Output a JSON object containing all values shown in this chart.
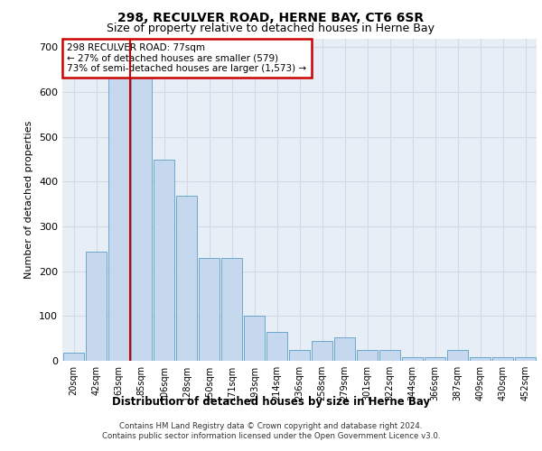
{
  "title": "298, RECULVER ROAD, HERNE BAY, CT6 6SR",
  "subtitle": "Size of property relative to detached houses in Herne Bay",
  "xlabel_bottom": "Distribution of detached houses by size in Herne Bay",
  "ylabel": "Number of detached properties",
  "categories": [
    "20sqm",
    "42sqm",
    "63sqm",
    "85sqm",
    "106sqm",
    "128sqm",
    "150sqm",
    "171sqm",
    "193sqm",
    "214sqm",
    "236sqm",
    "258sqm",
    "279sqm",
    "301sqm",
    "322sqm",
    "344sqm",
    "366sqm",
    "387sqm",
    "409sqm",
    "430sqm",
    "452sqm"
  ],
  "values": [
    18,
    243,
    645,
    645,
    450,
    368,
    230,
    230,
    100,
    65,
    25,
    45,
    52,
    25,
    25,
    8,
    8,
    25,
    8,
    8,
    8
  ],
  "bar_color": "#c5d8ed",
  "bar_edge_color": "#5a9dc5",
  "grid_color": "#d0dae8",
  "background_color": "#e8eef5",
  "annotation_text": "298 RECULVER ROAD: 77sqm\n← 27% of detached houses are smaller (579)\n73% of semi-detached houses are larger (1,573) →",
  "annotation_box_color": "#ffffff",
  "annotation_box_edge": "#cc0000",
  "vline_x_index": 2,
  "vline_color": "#cc0000",
  "ylim": [
    0,
    720
  ],
  "yticks": [
    0,
    100,
    200,
    300,
    400,
    500,
    600,
    700
  ],
  "footer": "Contains HM Land Registry data © Crown copyright and database right 2024.\nContains public sector information licensed under the Open Government Licence v3.0.",
  "title_fontsize": 10,
  "subtitle_fontsize": 9
}
